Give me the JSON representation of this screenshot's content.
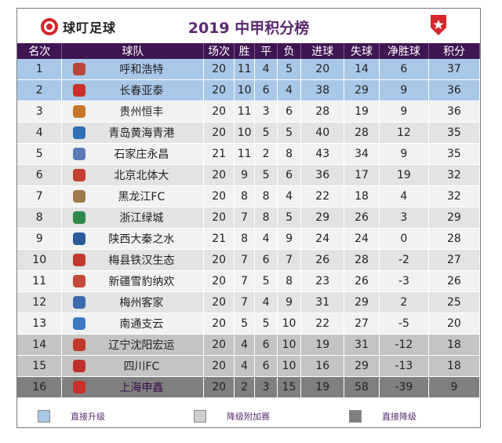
{
  "header": {
    "brand": "球叮足球",
    "title": "2019 中甲积分榜"
  },
  "columns": [
    "名次",
    "球队",
    "场次",
    "胜",
    "平",
    "负",
    "进球",
    "失球",
    "净胜球",
    "积分"
  ],
  "rows": [
    {
      "rank": "1",
      "team": "呼和浩特",
      "played": "20",
      "won": "11",
      "drawn": "4",
      "lost": "5",
      "gf": "20",
      "ga": "14",
      "gd": "6",
      "pts": "37",
      "zone": "promote",
      "badge": "#b8463a"
    },
    {
      "rank": "2",
      "team": "长春亚泰",
      "played": "20",
      "won": "10",
      "drawn": "6",
      "lost": "4",
      "gf": "38",
      "ga": "29",
      "gd": "9",
      "pts": "36",
      "zone": "promote",
      "badge": "#c9302c"
    },
    {
      "rank": "3",
      "team": "贵州恒丰",
      "played": "20",
      "won": "11",
      "drawn": "3",
      "lost": "6",
      "gf": "28",
      "ga": "19",
      "gd": "9",
      "pts": "36",
      "zone": "none",
      "badge": "#c8772a"
    },
    {
      "rank": "4",
      "team": "青岛黄海青港",
      "played": "20",
      "won": "10",
      "drawn": "5",
      "lost": "5",
      "gf": "40",
      "ga": "28",
      "gd": "12",
      "pts": "35",
      "zone": "none",
      "badge": "#2f6fb3"
    },
    {
      "rank": "5",
      "team": "石家庄永昌",
      "played": "21",
      "won": "11",
      "drawn": "2",
      "lost": "8",
      "gf": "43",
      "ga": "34",
      "gd": "9",
      "pts": "35",
      "zone": "none",
      "badge": "#5c7ab8"
    },
    {
      "rank": "6",
      "team": "北京北体大",
      "played": "20",
      "won": "9",
      "drawn": "5",
      "lost": "6",
      "gf": "36",
      "ga": "17",
      "gd": "19",
      "pts": "32",
      "zone": "none",
      "badge": "#c44030"
    },
    {
      "rank": "7",
      "team": "黑龙江FC",
      "played": "20",
      "won": "8",
      "drawn": "8",
      "lost": "4",
      "gf": "22",
      "ga": "18",
      "gd": "4",
      "pts": "32",
      "zone": "none",
      "badge": "#a07a4a"
    },
    {
      "rank": "8",
      "team": "浙江绿城",
      "played": "20",
      "won": "7",
      "drawn": "8",
      "lost": "5",
      "gf": "29",
      "ga": "26",
      "gd": "3",
      "pts": "29",
      "zone": "none",
      "badge": "#2f8a4a"
    },
    {
      "rank": "9",
      "team": "陕西大秦之水",
      "played": "21",
      "won": "8",
      "drawn": "4",
      "lost": "9",
      "gf": "24",
      "ga": "24",
      "gd": "0",
      "pts": "28",
      "zone": "none",
      "badge": "#2a5a9a"
    },
    {
      "rank": "10",
      "team": "梅县铁汉生态",
      "played": "20",
      "won": "7",
      "drawn": "6",
      "lost": "7",
      "gf": "26",
      "ga": "28",
      "gd": "-2",
      "pts": "27",
      "zone": "none",
      "badge": "#c0392b"
    },
    {
      "rank": "11",
      "team": "新疆雪豹纳欢",
      "played": "20",
      "won": "7",
      "drawn": "5",
      "lost": "8",
      "gf": "23",
      "ga": "26",
      "gd": "-3",
      "pts": "26",
      "zone": "none",
      "badge": "#c44a3a"
    },
    {
      "rank": "12",
      "team": "梅州客家",
      "played": "20",
      "won": "7",
      "drawn": "4",
      "lost": "9",
      "gf": "31",
      "ga": "29",
      "gd": "2",
      "pts": "25",
      "zone": "none",
      "badge": "#3a6ab0"
    },
    {
      "rank": "13",
      "team": "南通支云",
      "played": "20",
      "won": "5",
      "drawn": "5",
      "lost": "10",
      "gf": "22",
      "ga": "27",
      "gd": "-5",
      "pts": "20",
      "zone": "none",
      "badge": "#3a7ac0"
    },
    {
      "rank": "14",
      "team": "辽宁沈阳宏运",
      "played": "20",
      "won": "4",
      "drawn": "6",
      "lost": "10",
      "gf": "19",
      "ga": "31",
      "gd": "-12",
      "pts": "18",
      "zone": "playoff",
      "badge": "#c0392b"
    },
    {
      "rank": "15",
      "team": "四川FC",
      "played": "20",
      "won": "4",
      "drawn": "6",
      "lost": "10",
      "gf": "16",
      "ga": "29",
      "gd": "-13",
      "pts": "18",
      "zone": "playoff",
      "badge": "#c0302a"
    },
    {
      "rank": "16",
      "team": "上海申鑫",
      "played": "20",
      "won": "2",
      "drawn": "3",
      "lost": "15",
      "gf": "19",
      "ga": "58",
      "gd": "-39",
      "pts": "9",
      "zone": "relegate",
      "badge": "#c8302a"
    }
  ],
  "legend": [
    {
      "label": "直接升级",
      "color": "#a9c8e8"
    },
    {
      "label": "降级附加赛",
      "color": "#cfcfcf"
    },
    {
      "label": "直接降级",
      "color": "#7f7f7f"
    }
  ],
  "colors": {
    "header_bg": "#3f1552",
    "title": "#5a2a6f",
    "promote": "#a9c8e8",
    "playoff": "#c4c4c4",
    "relegate": "#7f7f7f",
    "stripe_light": "#f2f2f2",
    "stripe_dark": "#e3e3e3"
  },
  "icons": {
    "brand_logo": "qiuding-logo-icon",
    "right_logo": "red-star-logo-icon"
  }
}
